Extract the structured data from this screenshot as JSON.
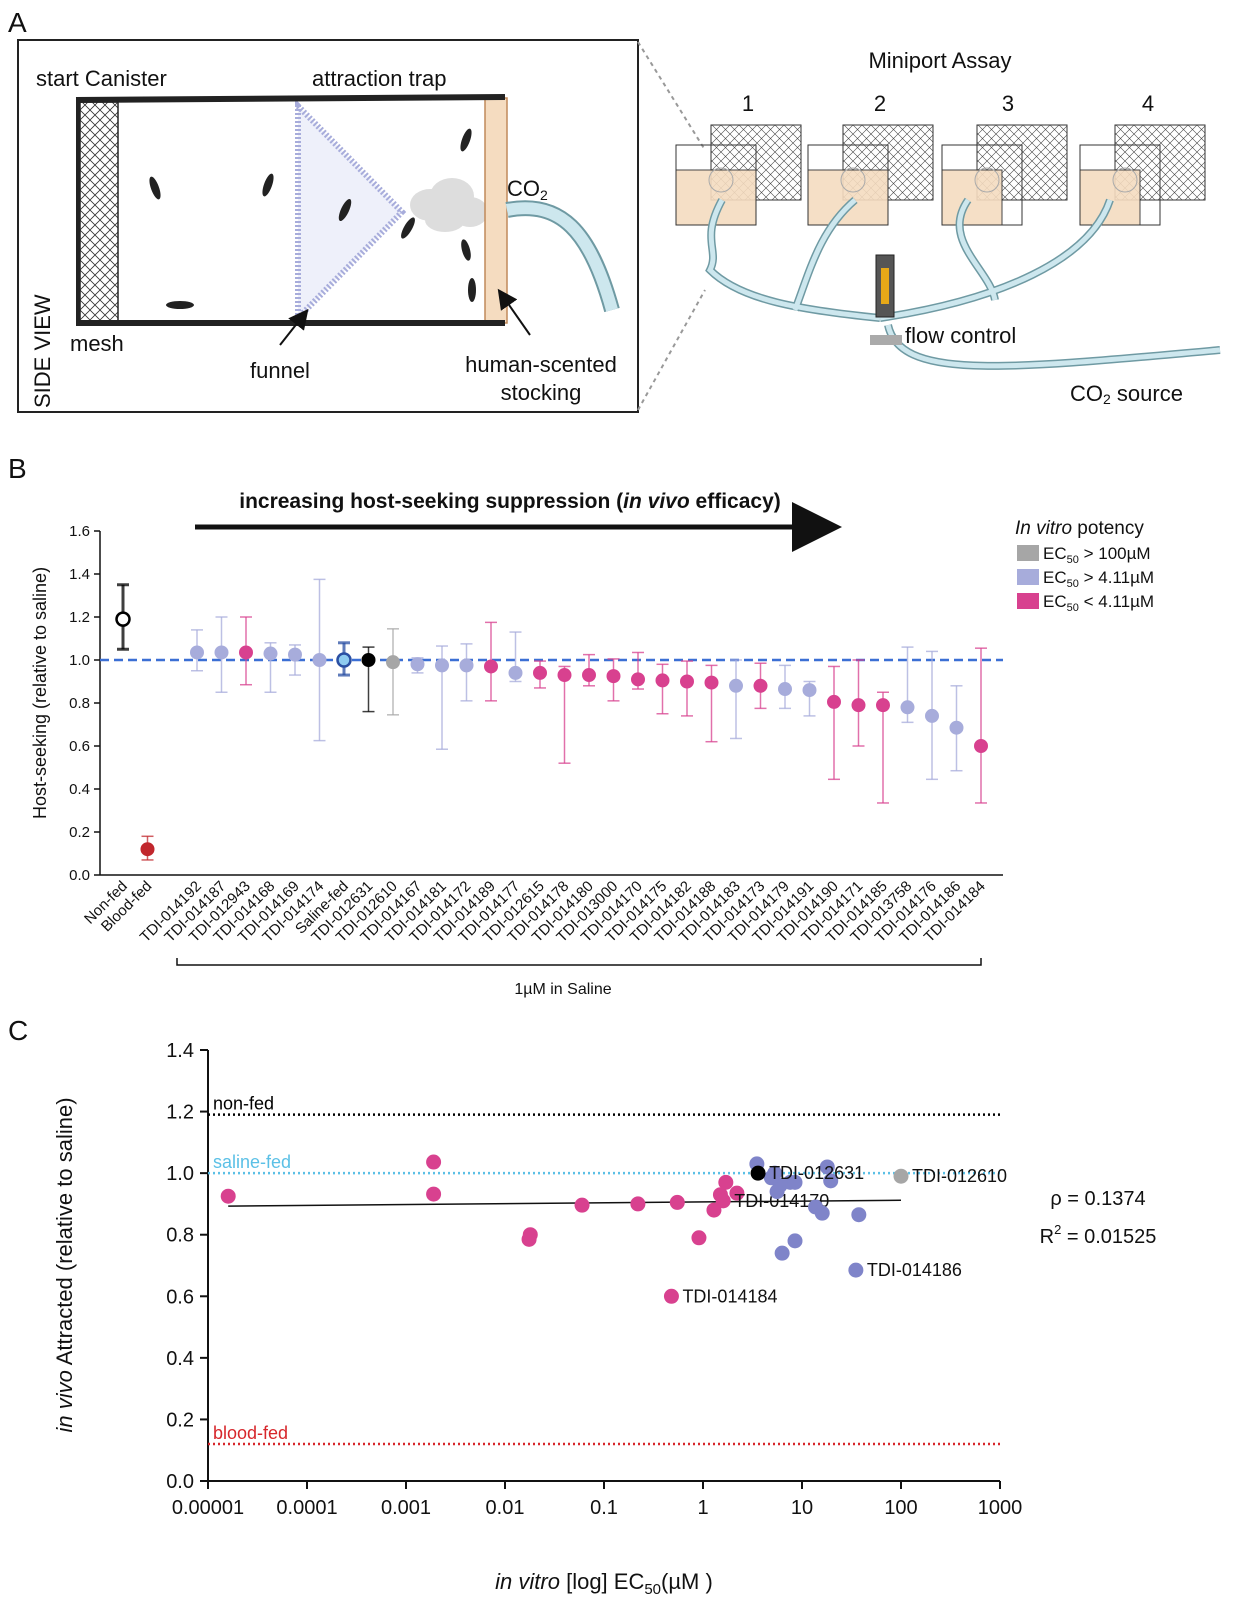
{
  "panel_labels": [
    "A",
    "B",
    "C"
  ],
  "diagram": {
    "side_view": "SIDE VIEW",
    "start_canister": "start Canister",
    "attraction_trap": "attraction trap",
    "co2": [
      "CO",
      "2"
    ],
    "mesh": "mesh",
    "funnel": "funnel",
    "stocking": [
      "human-scented",
      "stocking"
    ],
    "miniport_title": "Miniport Assay",
    "ports": [
      "1",
      "2",
      "3",
      "4"
    ],
    "flow_control": "flow control",
    "co2_source": [
      "CO",
      "2",
      " source"
    ]
  },
  "chart_data": [
    {
      "type": "dot_errorbar",
      "y_label": "Host-seeking (relative to saline)",
      "arrow_text": [
        "increasing host-seeking suppression (",
        "in vivo",
        " efficacy)"
      ],
      "bracket_label": "1µM in Saline",
      "categories": [
        "Non-fed",
        "Blood-fed",
        "TDI-014192",
        "TDI-014187",
        "TDI-012943",
        "TDI-014168",
        "TDI-014169",
        "TDI-014174",
        "Saline-fed",
        "TDI-012631",
        "TDI-012610",
        "TDI-014167",
        "TDI-014181",
        "TDI-014172",
        "TDI-014189",
        "TDI-014177",
        "TDI-012615",
        "TDI-014178",
        "TDI-014180",
        "TDI-013000",
        "TDI-014170",
        "TDI-014175",
        "TDI-014182",
        "TDI-014188",
        "TDI-014183",
        "TDI-014173",
        "TDI-014179",
        "TDI-014191",
        "TDI-014190",
        "TDI-014171",
        "TDI-014185",
        "TDI-013758",
        "TDI-014176",
        "TDI-014186",
        "TDI-014184"
      ],
      "values": [
        1.19,
        0.12,
        1.035,
        1.035,
        1.035,
        1.03,
        1.025,
        1.0,
        1.0,
        1.0,
        0.99,
        0.98,
        0.975,
        0.975,
        0.97,
        0.94,
        0.94,
        0.93,
        0.93,
        0.925,
        0.91,
        0.905,
        0.9,
        0.895,
        0.88,
        0.88,
        0.865,
        0.86,
        0.805,
        0.79,
        0.79,
        0.78,
        0.74,
        0.685,
        0.6
      ],
      "lower": [
        1.05,
        0.07,
        0.95,
        0.85,
        0.885,
        0.85,
        0.93,
        0.625,
        0.93,
        0.76,
        0.745,
        0.94,
        0.585,
        0.81,
        0.81,
        0.9,
        0.87,
        0.52,
        0.88,
        0.81,
        0.865,
        0.75,
        0.74,
        0.62,
        0.635,
        0.775,
        0.775,
        0.74,
        0.445,
        0.6,
        0.335,
        0.71,
        0.445,
        0.485,
        0.335
      ],
      "upper": [
        1.35,
        0.18,
        1.14,
        1.2,
        1.2,
        1.08,
        1.07,
        1.375,
        1.08,
        1.06,
        1.145,
        1.01,
        1.065,
        1.075,
        1.175,
        1.13,
        0.995,
        0.97,
        1.025,
        1.005,
        1.035,
        0.98,
        0.995,
        0.975,
        1.0,
        0.985,
        0.975,
        0.9,
        0.97,
        1.0,
        0.85,
        1.06,
        1.04,
        0.88,
        1.055
      ],
      "colors": [
        "#ffffff",
        "#c1272d",
        "#a7acdb",
        "#a7acdb",
        "#d8418f",
        "#a7acdb",
        "#a7acdb",
        "#a7acdb",
        "#8ecbf0",
        "#000000",
        "#a6a6a6",
        "#a7acdb",
        "#a7acdb",
        "#a7acdb",
        "#d8418f",
        "#a7acdb",
        "#d8418f",
        "#d8418f",
        "#d8418f",
        "#d8418f",
        "#d8418f",
        "#d8418f",
        "#d8418f",
        "#d8418f",
        "#a7acdb",
        "#d8418f",
        "#a7acdb",
        "#a7acdb",
        "#d8418f",
        "#d8418f",
        "#d8418f",
        "#a7acdb",
        "#a7acdb",
        "#a7acdb",
        "#d8418f"
      ],
      "edge_colors": [
        "#000000",
        "#c1272d",
        "#a7acdb",
        "#a7acdb",
        "#d8418f",
        "#a7acdb",
        "#a7acdb",
        "#a7acdb",
        "#2a4fa3",
        "#000000",
        "#a6a6a6",
        "#a7acdb",
        "#a7acdb",
        "#a7acdb",
        "#d8418f",
        "#a7acdb",
        "#d8418f",
        "#d8418f",
        "#d8418f",
        "#d8418f",
        "#d8418f",
        "#d8418f",
        "#d8418f",
        "#d8418f",
        "#a7acdb",
        "#d8418f",
        "#a7acdb",
        "#a7acdb",
        "#d8418f",
        "#d8418f",
        "#d8418f",
        "#a7acdb",
        "#a7acdb",
        "#a7acdb",
        "#d8418f"
      ],
      "ylim": [
        0,
        1.6
      ],
      "yticks": [
        {
          "value": 0,
          "label": "0.0"
        },
        0.2,
        0.4,
        0.6,
        0.8,
        {
          "value": 1,
          "label": "1.0"
        },
        1.2,
        1.4,
        1.6
      ],
      "ref_line": {
        "value": 1,
        "color": "#3b6fd4"
      },
      "legend": {
        "title": [
          "In vitro",
          " potency"
        ],
        "entries": [
          {
            "parts": [
              "EC",
              "50",
              " > 100µM"
            ],
            "color": "#a6a6a6"
          },
          {
            "parts": [
              "EC",
              "50",
              " > 4.11µM"
            ],
            "color": "#a7acdb"
          },
          {
            "parts": [
              "EC",
              "50",
              " < 4.11µM"
            ],
            "color": "#d8418f"
          }
        ]
      }
    },
    {
      "type": "scatter",
      "x_label": [
        "in vitro",
        " [log] EC",
        "50",
        "(µM )"
      ],
      "y_label": [
        "in vivo",
        " Attracted (relative to saline)"
      ],
      "log_x": true,
      "xlim": [
        1e-05,
        1000
      ],
      "xticks": [
        1e-05,
        0.0001,
        0.001,
        0.01,
        0.1,
        1,
        10,
        100,
        1000
      ],
      "ylim": [
        0,
        1.4
      ],
      "yticks": [
        {
          "value": 0,
          "label": "0.0"
        },
        0.2,
        0.4,
        0.6,
        0.8,
        {
          "value": 1,
          "label": "1.0"
        },
        1.2,
        1.4
      ],
      "series": [
        {
          "color": "#d8418f",
          "x": [
            1.6e-05,
            0.0019,
            0.0019,
            0.018,
            0.0175,
            0.06,
            0.22,
            0.55,
            0.48,
            0.91,
            1.29,
            1.5,
            1.6,
            1.7,
            2.2
          ],
          "values": [
            0.925,
            1.036,
            0.932,
            0.8,
            0.785,
            0.896,
            0.9,
            0.905,
            0.6,
            0.79,
            0.88,
            0.93,
            0.91,
            0.97,
            0.935
          ],
          "labels": [
            null,
            null,
            null,
            null,
            null,
            null,
            null,
            null,
            "TDI-014184",
            null,
            null,
            null,
            "TDI-014170",
            null,
            null
          ]
        },
        {
          "color": "#7f84c9",
          "x": [
            3.5,
            5.3,
            6.0,
            5.6,
            7.6,
            13.7,
            16,
            18,
            19.5,
            8.5,
            6.3,
            8.5,
            35,
            37.5,
            4.9
          ],
          "values": [
            1.03,
            1.0,
            0.96,
            0.94,
            0.97,
            0.89,
            0.87,
            1.02,
            0.975,
            0.97,
            0.74,
            0.78,
            0.685,
            0.865,
            0.985
          ],
          "labels": [
            null,
            null,
            null,
            null,
            null,
            null,
            null,
            null,
            null,
            null,
            null,
            null,
            "TDI-014186",
            null,
            null
          ]
        },
        {
          "color": "#000000",
          "x": [
            3.6
          ],
          "values": [
            1.0
          ],
          "labels": [
            "TDI-012631"
          ]
        },
        {
          "color": "#a6a6a6",
          "x": [
            100
          ],
          "values": [
            0.99
          ],
          "labels": [
            "TDI-012610"
          ]
        }
      ],
      "ref_lines": [
        {
          "label": "non-fed",
          "value": 1.19,
          "color": "#000000"
        },
        {
          "label": "saline-fed",
          "value": 1.0,
          "color": "#5bc0e6"
        },
        {
          "label": "blood-fed",
          "value": 0.12,
          "color": "#d7262b"
        }
      ],
      "fit": {
        "x": [
          1.6e-05,
          100
        ],
        "y": [
          0.893,
          0.912
        ]
      },
      "rho": "ρ = 0.1374",
      "r2": [
        "R",
        "2",
        " = 0.01525"
      ]
    }
  ]
}
